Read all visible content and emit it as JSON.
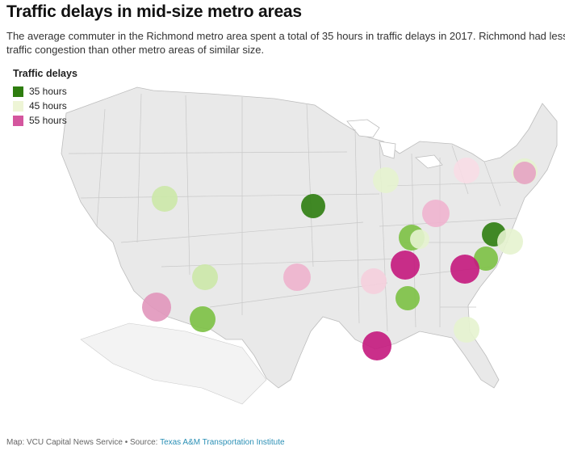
{
  "title": "Traffic delays in mid-size metro areas",
  "subtitle": "The average commuter in the Richmond metro area spent a total of 35 hours in traffic delays in 2017. Richmond had less traffic congestion than other metro areas of similar size.",
  "legend": {
    "title": "Traffic delays",
    "items": [
      {
        "label": "35 hours",
        "color": "#2e7d0f"
      },
      {
        "label": "45 hours",
        "color": "#eef5d6"
      },
      {
        "label": "55 hours",
        "color": "#d4569e"
      }
    ]
  },
  "footer": {
    "credit": "Map: VCU Capital News Service • Source: ",
    "source": "Texas A&M Transportation Institute"
  },
  "metros": [
    {
      "color": "#2e7d0f"
    },
    {
      "color": "#2e7d0f"
    },
    {
      "color": "#7cc144"
    },
    {
      "color": "#7cc144"
    },
    {
      "color": "#7cc144"
    },
    {
      "color": "#7cc144"
    },
    {
      "color": "#cce8a8"
    },
    {
      "color": "#cce8a8"
    },
    {
      "color": "#e6f3cf"
    },
    {
      "color": "#e6f3cf"
    },
    {
      "color": "#e6f3cf"
    },
    {
      "color": "#e6f3cf"
    },
    {
      "color": "#e6f3cf"
    },
    {
      "color": "#f8dde6"
    },
    {
      "color": "#f5cfdd"
    },
    {
      "color": "#efb4cf"
    },
    {
      "color": "#eeb2cd"
    },
    {
      "color": "#e6a3c3"
    },
    {
      "color": "#e196bb"
    },
    {
      "color": "#c4187d"
    },
    {
      "color": "#c4187d"
    },
    {
      "color": "#c4187d"
    }
  ]
}
